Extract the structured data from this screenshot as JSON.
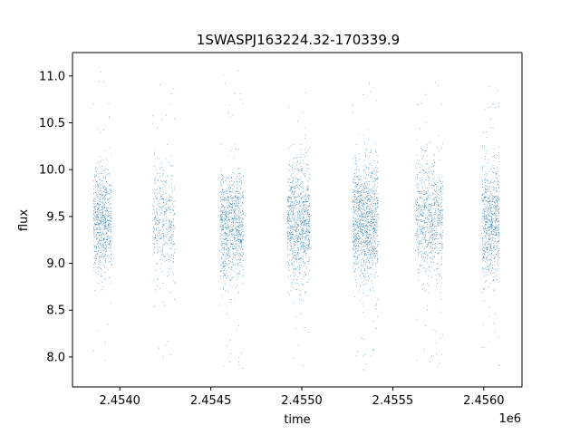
{
  "chart_data": {
    "type": "scatter",
    "title": "1SWASPJ163224.32-170339.9",
    "xlabel": "time",
    "ylabel": "flux",
    "x_offset_label": "1e6",
    "xlim": [
      2453740,
      2456210
    ],
    "ylim": [
      7.68,
      11.25
    ],
    "x_ticks": [
      2454000,
      2454500,
      2455000,
      2455500,
      2456000
    ],
    "x_tick_labels": [
      "2.4540",
      "2.4545",
      "2.4550",
      "2.4555",
      "2.4560"
    ],
    "y_ticks": [
      8.0,
      8.5,
      9.0,
      9.5,
      10.0,
      10.5,
      11.0
    ],
    "y_tick_labels": [
      "8.0",
      "8.5",
      "9.0",
      "9.5",
      "10.0",
      "10.5",
      "11.0"
    ],
    "grid": false,
    "point_color": "#1f77b4",
    "series": [
      {
        "seasons": [
          {
            "x_start": 2453855,
            "x_end": 2453955,
            "center": 9.45,
            "spread": 0.28,
            "y_min": 7.88,
            "y_max": 11.1,
            "density": 1.0
          },
          {
            "x_start": 2454180,
            "x_end": 2454305,
            "center": 9.45,
            "spread": 0.28,
            "y_min": 7.9,
            "y_max": 11.05,
            "density": 0.6
          },
          {
            "x_start": 2454550,
            "x_end": 2454680,
            "center": 9.4,
            "spread": 0.3,
            "y_min": 7.88,
            "y_max": 11.1,
            "density": 1.3
          },
          {
            "x_start": 2454920,
            "x_end": 2455045,
            "center": 9.45,
            "spread": 0.3,
            "y_min": 7.88,
            "y_max": 10.95,
            "density": 1.3
          },
          {
            "x_start": 2455280,
            "x_end": 2455420,
            "center": 9.45,
            "spread": 0.32,
            "y_min": 7.86,
            "y_max": 10.95,
            "density": 1.6
          },
          {
            "x_start": 2455625,
            "x_end": 2455775,
            "center": 9.5,
            "spread": 0.3,
            "y_min": 7.88,
            "y_max": 10.95,
            "density": 1.1
          },
          {
            "x_start": 2455990,
            "x_end": 2456085,
            "center": 9.45,
            "spread": 0.32,
            "y_min": 7.85,
            "y_max": 11.0,
            "density": 1.0
          }
        ]
      }
    ]
  }
}
